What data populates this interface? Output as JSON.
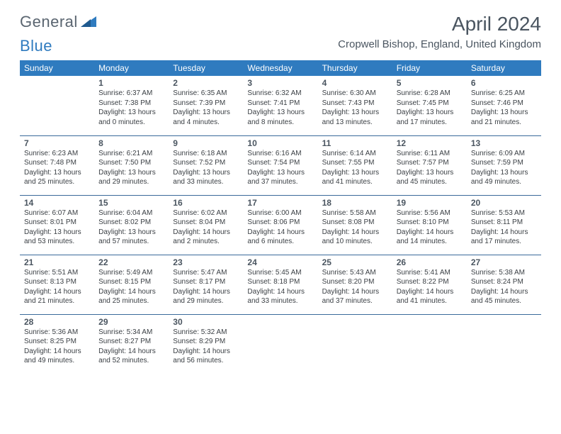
{
  "logo": {
    "part1": "General",
    "part2": "Blue"
  },
  "title": "April 2024",
  "location": "Cropwell Bishop, England, United Kingdom",
  "colors": {
    "header_bg": "#2f7bbf",
    "header_text": "#ffffff",
    "text": "#3a3f44",
    "muted": "#4a5560",
    "rule": "#3a6a9a"
  },
  "days_of_week": [
    "Sunday",
    "Monday",
    "Tuesday",
    "Wednesday",
    "Thursday",
    "Friday",
    "Saturday"
  ],
  "weeks": [
    [
      null,
      {
        "n": "1",
        "sr": "6:37 AM",
        "ss": "7:38 PM",
        "dlh": "13",
        "dlm": "0"
      },
      {
        "n": "2",
        "sr": "6:35 AM",
        "ss": "7:39 PM",
        "dlh": "13",
        "dlm": "4"
      },
      {
        "n": "3",
        "sr": "6:32 AM",
        "ss": "7:41 PM",
        "dlh": "13",
        "dlm": "8"
      },
      {
        "n": "4",
        "sr": "6:30 AM",
        "ss": "7:43 PM",
        "dlh": "13",
        "dlm": "13"
      },
      {
        "n": "5",
        "sr": "6:28 AM",
        "ss": "7:45 PM",
        "dlh": "13",
        "dlm": "17"
      },
      {
        "n": "6",
        "sr": "6:25 AM",
        "ss": "7:46 PM",
        "dlh": "13",
        "dlm": "21"
      }
    ],
    [
      {
        "n": "7",
        "sr": "6:23 AM",
        "ss": "7:48 PM",
        "dlh": "13",
        "dlm": "25"
      },
      {
        "n": "8",
        "sr": "6:21 AM",
        "ss": "7:50 PM",
        "dlh": "13",
        "dlm": "29"
      },
      {
        "n": "9",
        "sr": "6:18 AM",
        "ss": "7:52 PM",
        "dlh": "13",
        "dlm": "33"
      },
      {
        "n": "10",
        "sr": "6:16 AM",
        "ss": "7:54 PM",
        "dlh": "13",
        "dlm": "37"
      },
      {
        "n": "11",
        "sr": "6:14 AM",
        "ss": "7:55 PM",
        "dlh": "13",
        "dlm": "41"
      },
      {
        "n": "12",
        "sr": "6:11 AM",
        "ss": "7:57 PM",
        "dlh": "13",
        "dlm": "45"
      },
      {
        "n": "13",
        "sr": "6:09 AM",
        "ss": "7:59 PM",
        "dlh": "13",
        "dlm": "49"
      }
    ],
    [
      {
        "n": "14",
        "sr": "6:07 AM",
        "ss": "8:01 PM",
        "dlh": "13",
        "dlm": "53"
      },
      {
        "n": "15",
        "sr": "6:04 AM",
        "ss": "8:02 PM",
        "dlh": "13",
        "dlm": "57"
      },
      {
        "n": "16",
        "sr": "6:02 AM",
        "ss": "8:04 PM",
        "dlh": "14",
        "dlm": "2"
      },
      {
        "n": "17",
        "sr": "6:00 AM",
        "ss": "8:06 PM",
        "dlh": "14",
        "dlm": "6"
      },
      {
        "n": "18",
        "sr": "5:58 AM",
        "ss": "8:08 PM",
        "dlh": "14",
        "dlm": "10"
      },
      {
        "n": "19",
        "sr": "5:56 AM",
        "ss": "8:10 PM",
        "dlh": "14",
        "dlm": "14"
      },
      {
        "n": "20",
        "sr": "5:53 AM",
        "ss": "8:11 PM",
        "dlh": "14",
        "dlm": "17"
      }
    ],
    [
      {
        "n": "21",
        "sr": "5:51 AM",
        "ss": "8:13 PM",
        "dlh": "14",
        "dlm": "21"
      },
      {
        "n": "22",
        "sr": "5:49 AM",
        "ss": "8:15 PM",
        "dlh": "14",
        "dlm": "25"
      },
      {
        "n": "23",
        "sr": "5:47 AM",
        "ss": "8:17 PM",
        "dlh": "14",
        "dlm": "29"
      },
      {
        "n": "24",
        "sr": "5:45 AM",
        "ss": "8:18 PM",
        "dlh": "14",
        "dlm": "33"
      },
      {
        "n": "25",
        "sr": "5:43 AM",
        "ss": "8:20 PM",
        "dlh": "14",
        "dlm": "37"
      },
      {
        "n": "26",
        "sr": "5:41 AM",
        "ss": "8:22 PM",
        "dlh": "14",
        "dlm": "41"
      },
      {
        "n": "27",
        "sr": "5:38 AM",
        "ss": "8:24 PM",
        "dlh": "14",
        "dlm": "45"
      }
    ],
    [
      {
        "n": "28",
        "sr": "5:36 AM",
        "ss": "8:25 PM",
        "dlh": "14",
        "dlm": "49"
      },
      {
        "n": "29",
        "sr": "5:34 AM",
        "ss": "8:27 PM",
        "dlh": "14",
        "dlm": "52"
      },
      {
        "n": "30",
        "sr": "5:32 AM",
        "ss": "8:29 PM",
        "dlh": "14",
        "dlm": "56"
      },
      null,
      null,
      null,
      null
    ]
  ]
}
